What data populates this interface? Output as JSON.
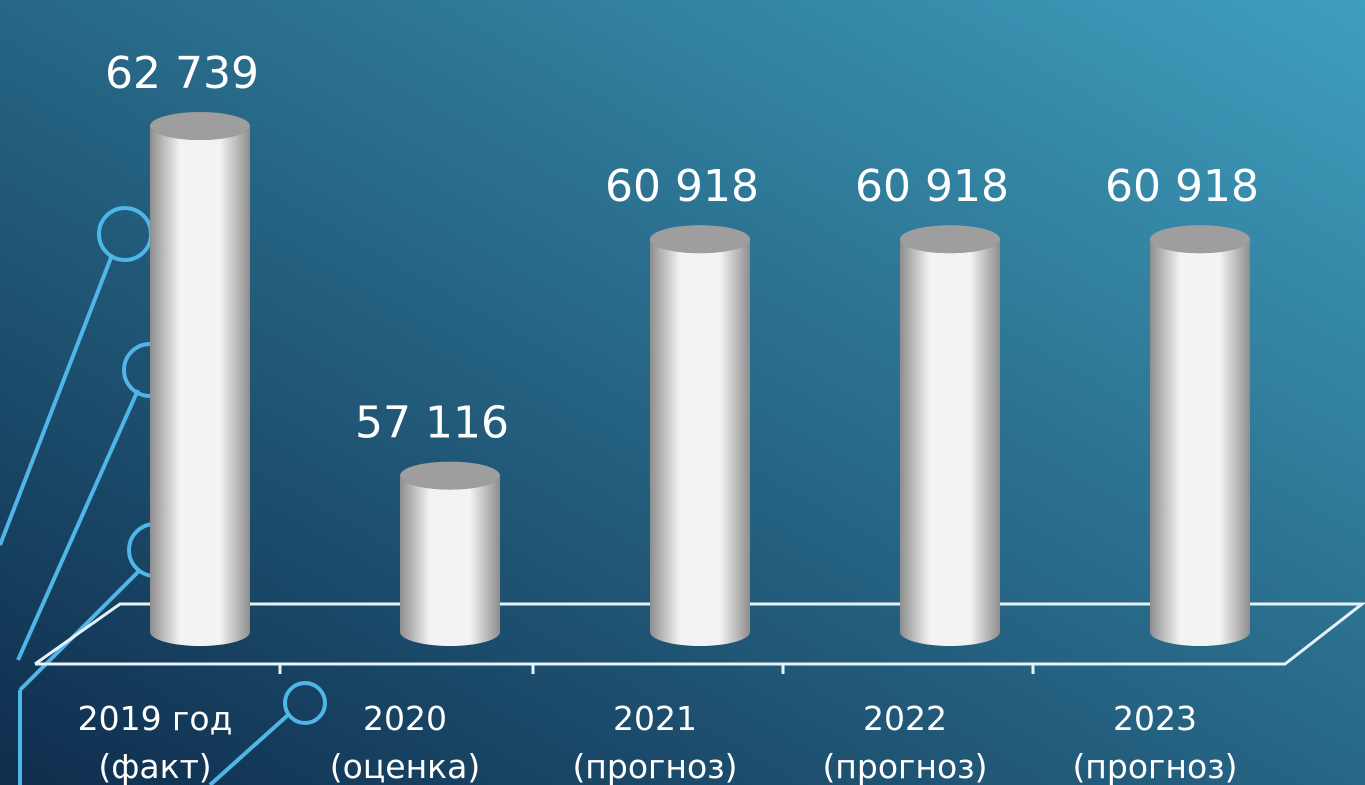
{
  "chart_data": {
    "type": "bar",
    "style": "3d-cylinder",
    "categories": [
      [
        "2019 год",
        "(факт)"
      ],
      [
        "2020",
        "(оценка)"
      ],
      [
        "2021",
        "(прогноз)"
      ],
      [
        "2022",
        "(прогноз)"
      ],
      [
        "2023",
        "(прогноз)"
      ]
    ],
    "values": [
      62739,
      57116,
      60918,
      60918,
      60918
    ],
    "value_labels": [
      "62 739",
      "57 116",
      "60 918",
      "60 918",
      "60 918"
    ],
    "title": "",
    "xlabel": "",
    "ylabel": "",
    "ylim": [
      54600,
      63800
    ],
    "grid": false,
    "legend": "none"
  },
  "colors": {
    "background_top": "#3f9fbe",
    "background_bottom": "#0f2d4d",
    "text": "#ffffff",
    "floor_line": "#e6f1f8",
    "bar_light": "#f3f3f3",
    "bar_dark": "#8d8d8d",
    "bar_top": "#9e9e9e",
    "decor_line": "#4fb6e8"
  }
}
